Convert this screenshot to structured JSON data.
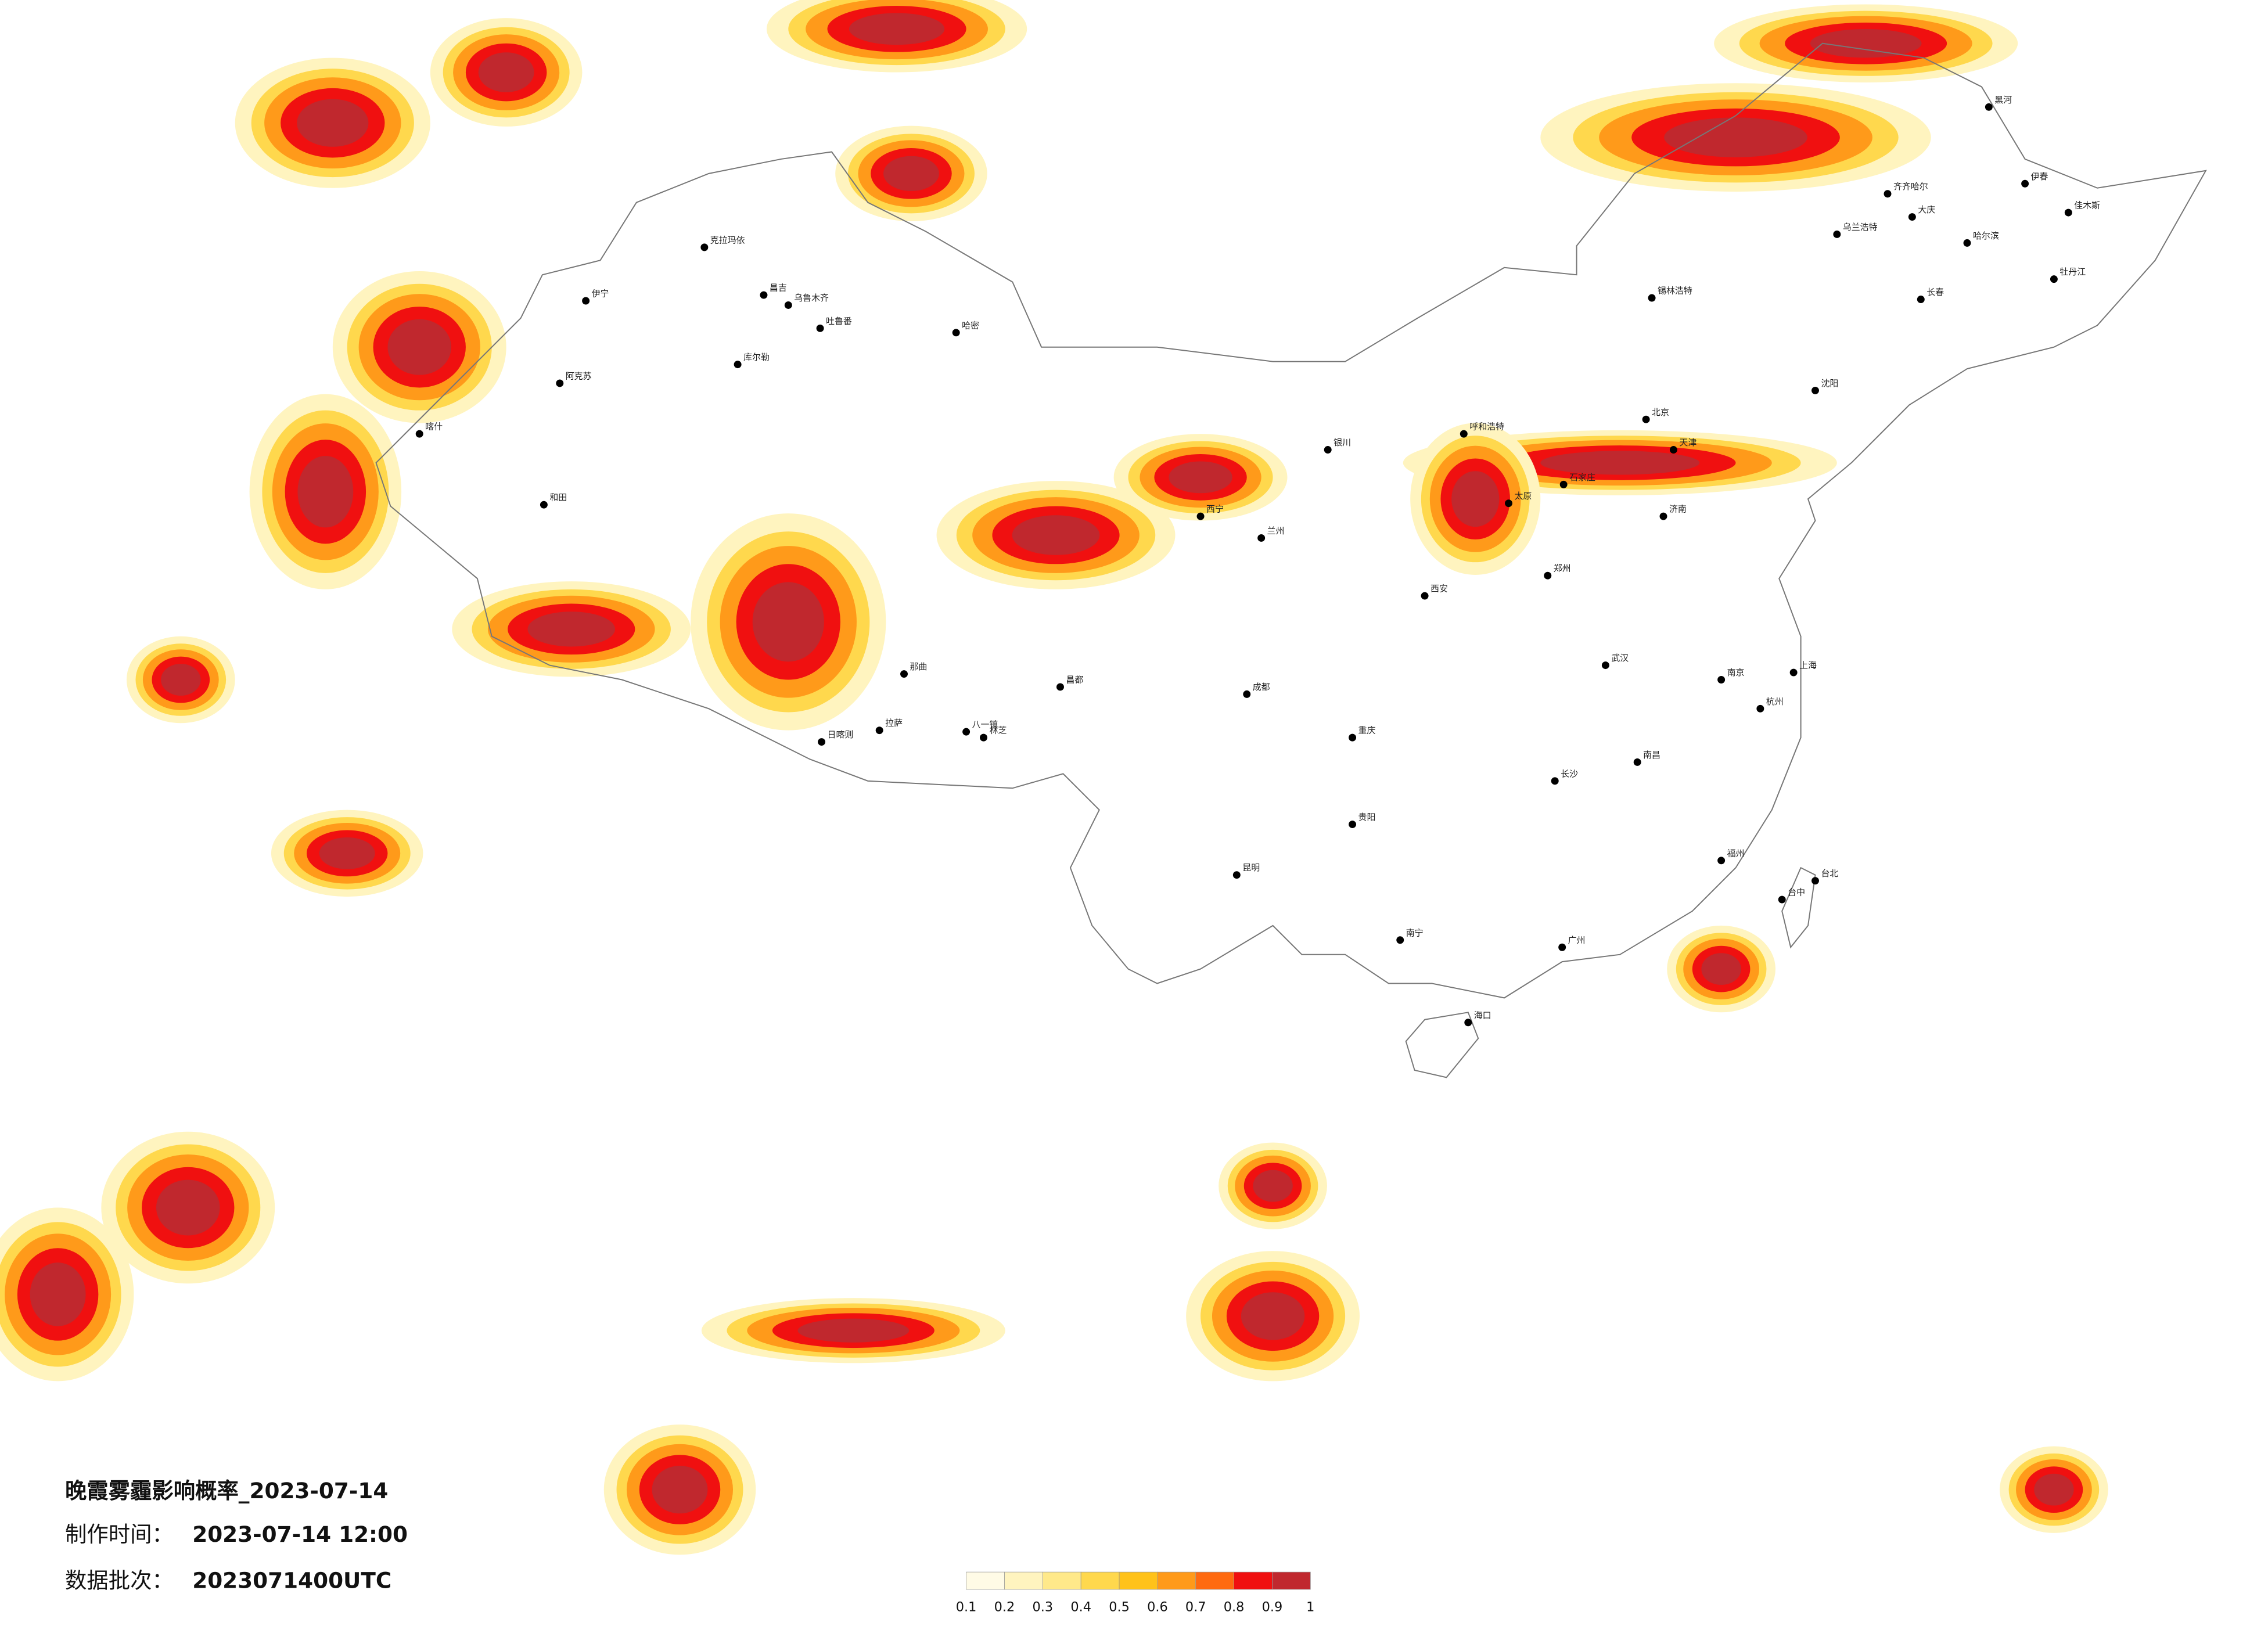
{
  "header": {
    "title": "晚霞雾霾影响概率_2023-07-14",
    "production_label": "制作时间：",
    "production_time": "2023-07-14 12:00",
    "batch_label": "数据批次：",
    "batch": "2023071400UTC"
  },
  "legend": {
    "ticks": [
      0.1,
      0.2,
      0.3,
      0.4,
      0.5,
      0.6,
      0.7,
      0.8,
      0.9,
      1
    ],
    "colors": [
      "#fffbe6",
      "#fff4bf",
      "#ffe98a",
      "#ffd84d",
      "#ffc21a",
      "#ff9a1a",
      "#ff6a10",
      "#f01010",
      "#c0282e"
    ]
  },
  "cities": [
    "克拉玛依",
    "伊宁",
    "昌吉",
    "乌鲁木齐",
    "吐鲁番",
    "哈密",
    "库尔勒",
    "阿克苏",
    "喀什",
    "和田",
    "日喀则",
    "拉萨",
    "八一镇",
    "林芝",
    "那曲",
    "昌都",
    "西宁",
    "兰州",
    "银川",
    "呼和浩特",
    "北京",
    "天津",
    "石家庄",
    "太原",
    "济南",
    "郑州",
    "西安",
    "成都",
    "重庆",
    "武汉",
    "长沙",
    "南昌",
    "南京",
    "上海",
    "杭州",
    "福州",
    "台北",
    "台中",
    "广州",
    "南宁",
    "海口",
    "贵阳",
    "昆明",
    "沈阳",
    "长春",
    "哈尔滨",
    "齐齐哈尔",
    "大庆",
    "乌兰浩特",
    "锡林浩特",
    "黑河",
    "伊春",
    "佳木斯",
    "牡丹江"
  ]
}
